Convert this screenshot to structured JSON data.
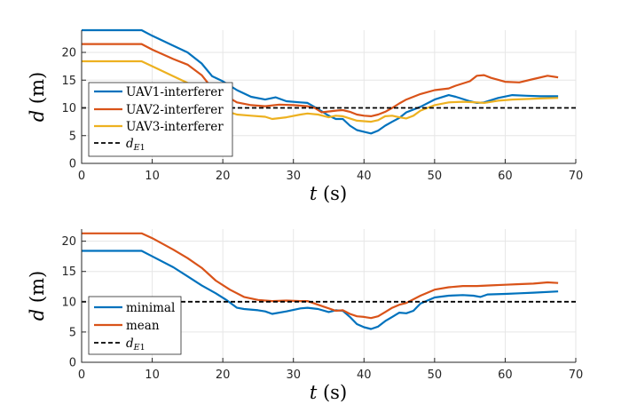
{
  "colors": {
    "blue": "#0072BD",
    "orange": "#D95319",
    "yellow": "#EDB120",
    "black": "#000000"
  },
  "chart_data": [
    {
      "type": "line",
      "xlabel": "t (s)",
      "ylabel": "d (m)",
      "xlim": [
        0,
        70
      ],
      "ylim": [
        0,
        24
      ],
      "xticks": [
        0,
        10,
        20,
        30,
        40,
        50,
        60,
        70
      ],
      "yticks": [
        0,
        5,
        10,
        15,
        20
      ],
      "grid": true,
      "legend_position": "left-middle",
      "series": [
        {
          "name": "UAV1-interferer",
          "color": "#0072BD",
          "points": [
            [
              0,
              24.0
            ],
            [
              8.5,
              24.0
            ],
            [
              10,
              23.0
            ],
            [
              13,
              21.2
            ],
            [
              15,
              20.0
            ],
            [
              17,
              18.0
            ],
            [
              18.5,
              15.7
            ],
            [
              20,
              14.8
            ],
            [
              22,
              13.2
            ],
            [
              24,
              12.0
            ],
            [
              26,
              11.5
            ],
            [
              27.5,
              11.9
            ],
            [
              29,
              11.2
            ],
            [
              31,
              11.0
            ],
            [
              32,
              10.9
            ],
            [
              33.5,
              9.8
            ],
            [
              35,
              8.6
            ],
            [
              36,
              8.0
            ],
            [
              37,
              8.0
            ],
            [
              38,
              6.8
            ],
            [
              39,
              6.0
            ],
            [
              40,
              5.7
            ],
            [
              41,
              5.4
            ],
            [
              42,
              5.9
            ],
            [
              43,
              6.8
            ],
            [
              44,
              7.5
            ],
            [
              45,
              8.2
            ],
            [
              46,
              9.2
            ],
            [
              48,
              10.2
            ],
            [
              50,
              11.5
            ],
            [
              52,
              12.3
            ],
            [
              53,
              12.0
            ],
            [
              55,
              11.2
            ],
            [
              56,
              10.9
            ],
            [
              57,
              11.0
            ],
            [
              59,
              11.8
            ],
            [
              61,
              12.3
            ],
            [
              63,
              12.2
            ],
            [
              65,
              12.1
            ],
            [
              67.5,
              12.1
            ]
          ]
        },
        {
          "name": "UAV2-interferer",
          "color": "#D95319",
          "points": [
            [
              0,
              21.5
            ],
            [
              8.5,
              21.5
            ],
            [
              10,
              20.5
            ],
            [
              13,
              18.8
            ],
            [
              15,
              17.8
            ],
            [
              17,
              15.9
            ],
            [
              18.5,
              13.5
            ],
            [
              20,
              12.5
            ],
            [
              22,
              11.0
            ],
            [
              24,
              10.5
            ],
            [
              26,
              10.3
            ],
            [
              28,
              10.6
            ],
            [
              30,
              10.5
            ],
            [
              32,
              10.3
            ],
            [
              33,
              10.0
            ],
            [
              34,
              9.2
            ],
            [
              36,
              9.5
            ],
            [
              37,
              9.6
            ],
            [
              38,
              9.3
            ],
            [
              39,
              8.8
            ],
            [
              40,
              8.6
            ],
            [
              41,
              8.5
            ],
            [
              42,
              8.8
            ],
            [
              43,
              9.3
            ],
            [
              44,
              10.0
            ],
            [
              45,
              10.8
            ],
            [
              46,
              11.5
            ],
            [
              48,
              12.5
            ],
            [
              50,
              13.2
            ],
            [
              52,
              13.5
            ],
            [
              53,
              14.0
            ],
            [
              55,
              14.8
            ],
            [
              56,
              15.8
            ],
            [
              57,
              15.9
            ],
            [
              58,
              15.4
            ],
            [
              60,
              14.7
            ],
            [
              62,
              14.6
            ],
            [
              64,
              15.2
            ],
            [
              66,
              15.8
            ],
            [
              67.5,
              15.5
            ]
          ]
        },
        {
          "name": "UAV3-interferer",
          "color": "#EDB120",
          "points": [
            [
              0,
              18.4
            ],
            [
              8.5,
              18.4
            ],
            [
              10,
              17.5
            ],
            [
              13,
              15.7
            ],
            [
              15,
              14.5
            ],
            [
              17,
              12.6
            ],
            [
              18.5,
              10.5
            ],
            [
              20,
              9.6
            ],
            [
              22,
              8.8
            ],
            [
              24,
              8.6
            ],
            [
              26,
              8.4
            ],
            [
              27,
              8.0
            ],
            [
              29,
              8.3
            ],
            [
              31,
              8.8
            ],
            [
              32,
              9.0
            ],
            [
              33.5,
              8.8
            ],
            [
              35,
              8.3
            ],
            [
              36,
              8.6
            ],
            [
              37,
              8.5
            ],
            [
              38,
              8.1
            ],
            [
              39,
              7.7
            ],
            [
              40,
              7.6
            ],
            [
              41,
              7.5
            ],
            [
              42,
              7.8
            ],
            [
              43,
              8.5
            ],
            [
              44,
              8.6
            ],
            [
              45,
              8.3
            ],
            [
              46,
              8.1
            ],
            [
              47,
              8.6
            ],
            [
              48,
              9.5
            ],
            [
              50,
              10.5
            ],
            [
              52,
              11.0
            ],
            [
              54,
              11.1
            ],
            [
              56,
              11.0
            ],
            [
              57,
              10.9
            ],
            [
              59,
              11.3
            ],
            [
              61,
              11.5
            ],
            [
              63,
              11.6
            ],
            [
              65,
              11.7
            ],
            [
              67.5,
              11.8
            ]
          ]
        },
        {
          "name": "d_E1",
          "color": "#000000",
          "dashed": true,
          "points": [
            [
              0,
              10
            ],
            [
              70,
              10
            ]
          ]
        }
      ]
    },
    {
      "type": "line",
      "xlabel": "t (s)",
      "ylabel": "d (m)",
      "xlim": [
        0,
        70
      ],
      "ylim": [
        0,
        22
      ],
      "xticks": [
        0,
        10,
        20,
        30,
        40,
        50,
        60,
        70
      ],
      "yticks": [
        0,
        5,
        10,
        15,
        20
      ],
      "grid": true,
      "legend_position": "left-middle",
      "series": [
        {
          "name": "minimal",
          "color": "#0072BD",
          "points": [
            [
              0,
              18.4
            ],
            [
              8.5,
              18.4
            ],
            [
              10,
              17.5
            ],
            [
              13,
              15.7
            ],
            [
              15,
              14.2
            ],
            [
              17,
              12.7
            ],
            [
              19,
              11.4
            ],
            [
              20.5,
              10.3
            ],
            [
              22,
              9.0
            ],
            [
              23,
              8.8
            ],
            [
              25,
              8.6
            ],
            [
              26,
              8.4
            ],
            [
              27,
              8.0
            ],
            [
              29,
              8.4
            ],
            [
              31,
              8.9
            ],
            [
              32,
              9.0
            ],
            [
              33.5,
              8.8
            ],
            [
              35,
              8.3
            ],
            [
              36,
              8.6
            ],
            [
              37,
              8.5
            ],
            [
              38,
              7.5
            ],
            [
              39,
              6.3
            ],
            [
              40,
              5.8
            ],
            [
              41,
              5.5
            ],
            [
              42,
              5.9
            ],
            [
              43,
              6.8
            ],
            [
              44,
              7.5
            ],
            [
              45,
              8.2
            ],
            [
              46,
              8.1
            ],
            [
              47,
              8.5
            ],
            [
              48,
              9.7
            ],
            [
              50,
              10.7
            ],
            [
              52,
              11.0
            ],
            [
              54,
              11.1
            ],
            [
              55.5,
              11.0
            ],
            [
              56.5,
              10.8
            ],
            [
              57.5,
              11.2
            ],
            [
              60,
              11.3
            ],
            [
              62,
              11.4
            ],
            [
              64,
              11.5
            ],
            [
              67.5,
              11.7
            ]
          ]
        },
        {
          "name": "mean",
          "color": "#D95319",
          "points": [
            [
              0,
              21.3
            ],
            [
              8.5,
              21.3
            ],
            [
              10,
              20.5
            ],
            [
              13,
              18.6
            ],
            [
              15,
              17.2
            ],
            [
              17,
              15.6
            ],
            [
              19,
              13.5
            ],
            [
              21,
              12.0
            ],
            [
              23,
              10.8
            ],
            [
              25,
              10.3
            ],
            [
              27,
              10.1
            ],
            [
              29,
              10.2
            ],
            [
              31,
              10.1
            ],
            [
              32,
              10.1
            ],
            [
              34,
              9.3
            ],
            [
              36,
              8.5
            ],
            [
              37,
              8.6
            ],
            [
              38,
              8.0
            ],
            [
              39,
              7.6
            ],
            [
              40,
              7.5
            ],
            [
              41,
              7.3
            ],
            [
              42,
              7.6
            ],
            [
              43,
              8.3
            ],
            [
              44,
              9.0
            ],
            [
              45,
              9.5
            ],
            [
              46,
              9.8
            ],
            [
              48,
              11.0
            ],
            [
              50,
              12.0
            ],
            [
              52,
              12.4
            ],
            [
              54,
              12.6
            ],
            [
              56,
              12.6
            ],
            [
              58,
              12.7
            ],
            [
              60,
              12.8
            ],
            [
              62,
              12.9
            ],
            [
              64,
              13.0
            ],
            [
              66,
              13.2
            ],
            [
              67.5,
              13.1
            ]
          ]
        },
        {
          "name": "d_E1",
          "color": "#000000",
          "dashed": true,
          "points": [
            [
              0,
              10
            ],
            [
              70,
              10
            ]
          ]
        }
      ]
    }
  ]
}
